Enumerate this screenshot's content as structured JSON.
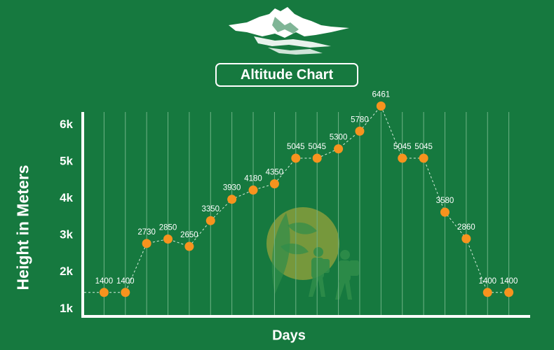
{
  "title": "Altitude Chart",
  "colors": {
    "background": "#16793f",
    "marker": "#f7931e",
    "axis": "#ffffff",
    "gridline": "#6fb386",
    "watermark": "#c7b23a"
  },
  "icons": [
    "mountain-logo-icon",
    "hiker-watermark-icon"
  ],
  "chart_data": {
    "type": "line",
    "title": "Altitude Chart",
    "xlabel": "Days",
    "ylabel": "Height in Meters",
    "y_tick_labels": [
      "1k",
      "2k",
      "3k",
      "4k",
      "5k",
      "6k"
    ],
    "y_ticks": [
      1000,
      2000,
      3000,
      4000,
      5000,
      6000
    ],
    "ylim": [
      750,
      6300
    ],
    "x": [
      1,
      2,
      3,
      4,
      5,
      6,
      7,
      8,
      9,
      10,
      11,
      12,
      13,
      14,
      15,
      16,
      17,
      18,
      19,
      20
    ],
    "xlim": [
      0,
      21
    ],
    "grid": "vertical",
    "series": [
      {
        "values": [
          1400,
          1400,
          2730,
          2850,
          2650,
          3350,
          3930,
          4180,
          4350,
          5045,
          5045,
          5300,
          5780,
          6461,
          5045,
          5045,
          3580,
          2860,
          1400,
          1400
        ],
        "labels": [
          "1400",
          "1400",
          "2730",
          "2850",
          "2650",
          "3350",
          "3930",
          "4180",
          "4350",
          "5045",
          "5045",
          "5300",
          "5780",
          "6461",
          "5045",
          "5045",
          "3580",
          "2860",
          "1400",
          "1400"
        ]
      }
    ]
  }
}
